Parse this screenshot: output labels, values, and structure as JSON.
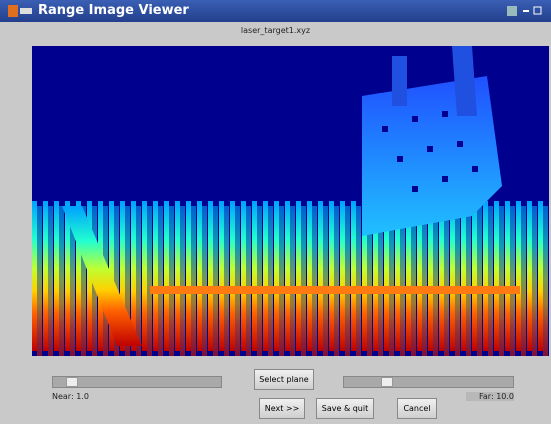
{
  "window": {
    "title": "Range Image Viewer",
    "file_name": "laser_target1.xyz"
  },
  "controls": {
    "near_label": "Near: 1.0",
    "far_label": "Far: 10.0",
    "buttons": [
      "Select plane",
      "Next >>",
      "Save & quit",
      "Cancel"
    ]
  }
}
